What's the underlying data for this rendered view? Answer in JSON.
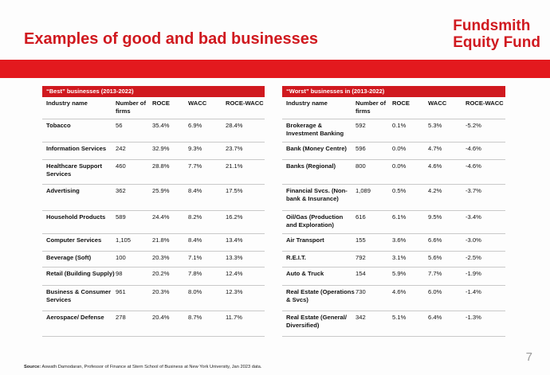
{
  "slide": {
    "title": "Examples of good and bad businesses",
    "brand_line1": "Fundsmith",
    "brand_line2": "Equity Fund",
    "page_number": "7",
    "source_label": "Source:",
    "source_text": "Aswath Damodaran, Professor of Finance at Stern School of Business at New York University, Jan 2023 data."
  },
  "colors": {
    "accent": "#d0191f",
    "band": "#e3191e"
  },
  "columns": {
    "industry": "Industry name",
    "number": "Number of firms",
    "roce": "ROCE",
    "wacc": "WACC",
    "roce_wacc": "ROCE-WACC"
  },
  "best": {
    "title": "“Best” businesses (2013-2022)",
    "rows": [
      {
        "industry": "Tobacco",
        "number": "56",
        "roce": "35.4%",
        "wacc": "6.9%",
        "diff": "28.4%"
      },
      {
        "industry": "Information Services",
        "number": "242",
        "roce": "32.9%",
        "wacc": "9.3%",
        "diff": "23.7%"
      },
      {
        "industry": "Healthcare Support Services",
        "number": "460",
        "roce": "28.8%",
        "wacc": "7.7%",
        "diff": "21.1%"
      },
      {
        "industry": "Advertising",
        "number": "362",
        "roce": "25.9%",
        "wacc": "8.4%",
        "diff": "17.5%"
      },
      {
        "industry": "Household Products",
        "number": "589",
        "roce": "24.4%",
        "wacc": "8.2%",
        "diff": "16.2%"
      },
      {
        "industry": "Computer Services",
        "number": "1,105",
        "roce": "21.8%",
        "wacc": "8.4%",
        "diff": "13.4%"
      },
      {
        "industry": "Beverage (Soft)",
        "number": "100",
        "roce": "20.3%",
        "wacc": "7.1%",
        "diff": "13.3%"
      },
      {
        "industry": "Retail (Building Supply)",
        "number": "98",
        "roce": "20.2%",
        "wacc": "7.8%",
        "diff": "12.4%"
      },
      {
        "industry": "Business & Consumer Services",
        "number": "961",
        "roce": "20.3%",
        "wacc": "8.0%",
        "diff": "12.3%"
      },
      {
        "industry": "Aerospace/ Defense",
        "number": "278",
        "roce": "20.4%",
        "wacc": "8.7%",
        "diff": "11.7%"
      }
    ]
  },
  "worst": {
    "title": "“Worst” businesses in (2013-2022)",
    "rows": [
      {
        "industry": "Brokerage & Investment Banking",
        "number": "592",
        "roce": "0.1%",
        "wacc": "5.3%",
        "diff": "-5.2%"
      },
      {
        "industry": "Bank (Money Centre)",
        "number": "596",
        "roce": "0.0%",
        "wacc": "4.7%",
        "diff": "-4.6%"
      },
      {
        "industry": "Banks (Regional)",
        "number": "800",
        "roce": "0.0%",
        "wacc": "4.6%",
        "diff": "-4.6%"
      },
      {
        "industry": "Financial Svcs. (Non-bank & Insurance)",
        "number": "1,089",
        "roce": "0.5%",
        "wacc": "4.2%",
        "diff": "-3.7%"
      },
      {
        "industry": "Oil/Gas (Production and Exploration)",
        "number": "616",
        "roce": "6.1%",
        "wacc": "9.5%",
        "diff": "-3.4%"
      },
      {
        "industry": "Air Transport",
        "number": "155",
        "roce": "3.6%",
        "wacc": "6.6%",
        "diff": "-3.0%"
      },
      {
        "industry": "R.E.I.T.",
        "number": "792",
        "roce": "3.1%",
        "wacc": "5.6%",
        "diff": "-2.5%"
      },
      {
        "industry": "Auto & Truck",
        "number": "154",
        "roce": "5.9%",
        "wacc": "7.7%",
        "diff": "-1.9%"
      },
      {
        "industry": "Real Estate (Operations & Svcs)",
        "number": "730",
        "roce": "4.6%",
        "wacc": "6.0%",
        "diff": "-1.4%"
      },
      {
        "industry": "Real Estate (General/ Diversified)",
        "number": "342",
        "roce": "5.1%",
        "wacc": "6.4%",
        "diff": "-1.3%"
      }
    ]
  }
}
